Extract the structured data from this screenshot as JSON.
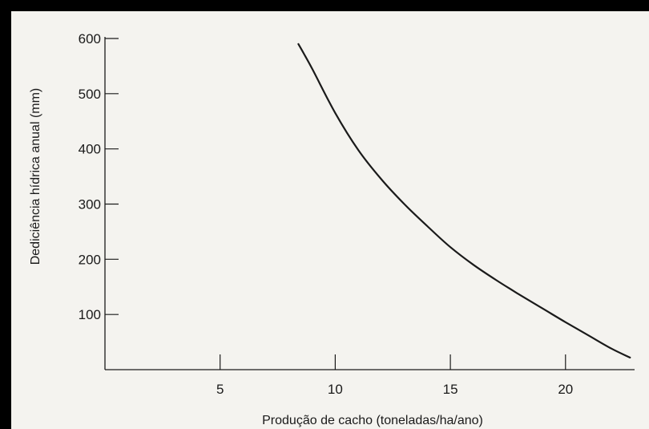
{
  "chart_data": {
    "type": "line",
    "title": "",
    "xlabel": "Produção de cacho (toneladas/ha/ano)",
    "ylabel": "Dediciência hídrica anual (mm)",
    "xlim": [
      0,
      23
    ],
    "ylim": [
      0,
      600
    ],
    "x_ticks": [
      5,
      10,
      15,
      20
    ],
    "y_ticks": [
      100,
      200,
      300,
      400,
      500,
      600
    ],
    "grid": false,
    "legend": "none",
    "series": [
      {
        "color": "#1a1a1a",
        "points": [
          {
            "x": 8.4,
            "y": 590
          },
          {
            "x": 9.0,
            "y": 545
          },
          {
            "x": 10.0,
            "y": 465
          },
          {
            "x": 11.0,
            "y": 398
          },
          {
            "x": 12.0,
            "y": 345
          },
          {
            "x": 13.0,
            "y": 300
          },
          {
            "x": 14.0,
            "y": 260
          },
          {
            "x": 15.0,
            "y": 222
          },
          {
            "x": 16.0,
            "y": 190
          },
          {
            "x": 17.0,
            "y": 162
          },
          {
            "x": 18.0,
            "y": 136
          },
          {
            "x": 19.0,
            "y": 111
          },
          {
            "x": 20.0,
            "y": 86
          },
          {
            "x": 21.0,
            "y": 62
          },
          {
            "x": 22.0,
            "y": 38
          },
          {
            "x": 22.8,
            "y": 22
          }
        ]
      }
    ]
  }
}
